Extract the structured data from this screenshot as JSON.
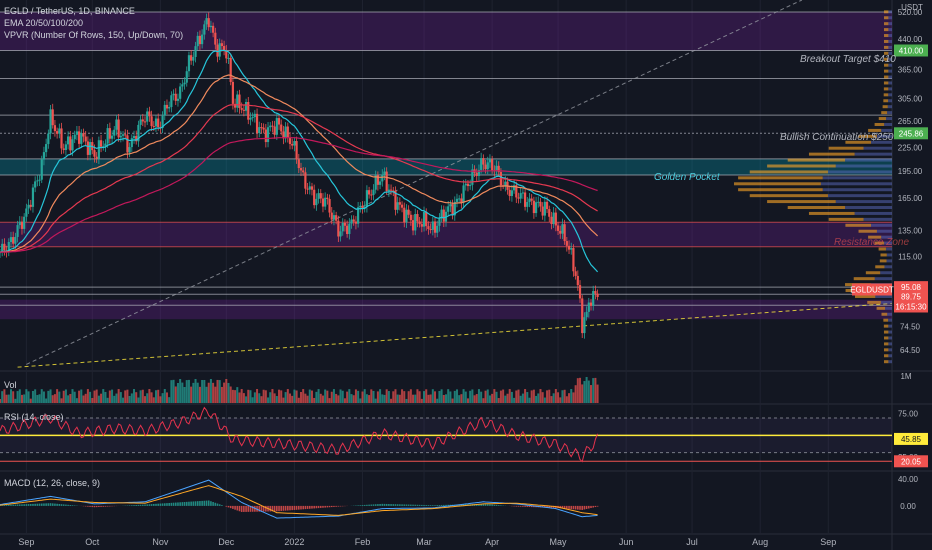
{
  "header": {
    "symbol_line": "EGLD / TetherUS, 1D, BINANCE",
    "ema_line": "EMA 20/50/100/200",
    "vpvr_line": "VPVR (Number Of Rows, 150, Up/Down, 70)"
  },
  "annotations": {
    "breakout": "Breakout Target $410",
    "bullish": "Bullish Continuation $250",
    "golden": "Golden Pocket",
    "resistance": "Resistance Zone"
  },
  "colors": {
    "background": "#131722",
    "up": "#26a69a",
    "down": "#ef5350",
    "ema20": "#26c6da",
    "ema50": "#f08a5d",
    "ema100": "#e53950",
    "ema200": "#c2185b",
    "rsi": "#e5334d",
    "macd": "#4aa3ff",
    "signal": "#ffa726"
  },
  "chart_data": [
    {
      "type": "candlestick",
      "title": "EGLD / TetherUS, 1D, BINANCE",
      "currency": "USDT",
      "y_scale": "log",
      "ylim": [
        57,
        560
      ],
      "y_ticks": [
        "520.00",
        "440.00",
        "365.00",
        "305.00",
        "265.00",
        "225.00",
        "195.00",
        "165.00",
        "135.00",
        "115.00",
        "74.50",
        "64.50"
      ],
      "x_ticks": [
        "Sep",
        "Oct",
        "Nov",
        "Dec",
        "2022",
        "Feb",
        "Mar",
        "Apr",
        "May",
        "Jun",
        "Jul",
        "Aug",
        "Sep"
      ],
      "close_path": [
        [
          "2021-08-20",
          118
        ],
        [
          "2021-08-25",
          125
        ],
        [
          "2021-09-01",
          150
        ],
        [
          "2021-09-08",
          200
        ],
        [
          "2021-09-12",
          270
        ],
        [
          "2021-09-18",
          225
        ],
        [
          "2021-09-25",
          245
        ],
        [
          "2021-10-02",
          215
        ],
        [
          "2021-10-08",
          240
        ],
        [
          "2021-10-12",
          255
        ],
        [
          "2021-10-18",
          225
        ],
        [
          "2021-10-25",
          275
        ],
        [
          "2021-10-31",
          255
        ],
        [
          "2021-11-05",
          300
        ],
        [
          "2021-11-10",
          315
        ],
        [
          "2021-11-14",
          380
        ],
        [
          "2021-11-18",
          430
        ],
        [
          "2021-11-23",
          500
        ],
        [
          "2021-11-26",
          420
        ],
        [
          "2021-12-01",
          410
        ],
        [
          "2021-12-04",
          300
        ],
        [
          "2021-12-08",
          290
        ],
        [
          "2021-12-13",
          270
        ],
        [
          "2021-12-18",
          245
        ],
        [
          "2021-12-24",
          260
        ],
        [
          "2021-12-31",
          232
        ],
        [
          "2022-01-05",
          185
        ],
        [
          "2022-01-10",
          165
        ],
        [
          "2022-01-15",
          163
        ],
        [
          "2022-01-21",
          135
        ],
        [
          "2022-01-27",
          140
        ],
        [
          "2022-02-03",
          165
        ],
        [
          "2022-02-07",
          180
        ],
        [
          "2022-02-10",
          190
        ],
        [
          "2022-02-14",
          170
        ],
        [
          "2022-02-18",
          155
        ],
        [
          "2022-02-24",
          142
        ],
        [
          "2022-03-01",
          143
        ],
        [
          "2022-03-05",
          135
        ],
        [
          "2022-03-10",
          150
        ],
        [
          "2022-03-16",
          160
        ],
        [
          "2022-03-22",
          185
        ],
        [
          "2022-03-28",
          205
        ],
        [
          "2022-04-02",
          200
        ],
        [
          "2022-04-07",
          175
        ],
        [
          "2022-04-12",
          170
        ],
        [
          "2022-04-18",
          160
        ],
        [
          "2022-04-25",
          155
        ],
        [
          "2022-04-30",
          140
        ],
        [
          "2022-05-04",
          130
        ],
        [
          "2022-05-08",
          110
        ],
        [
          "2022-05-10",
          95
        ],
        [
          "2022-05-12",
          76
        ],
        [
          "2022-05-14",
          80
        ],
        [
          "2022-05-16",
          90
        ],
        [
          "2022-05-19",
          89.75
        ]
      ],
      "last_price": "89.75",
      "last_label": "EGLDUSDT",
      "countdown": "16:15:30",
      "price_labels": [
        {
          "text": "410.00",
          "value": 410,
          "color": "#4caf50"
        },
        {
          "text": "245.86",
          "value": 245.86,
          "color": "#4caf50"
        },
        {
          "text": "95.08",
          "value": 95.08,
          "color": "#ef5350"
        }
      ],
      "horizontal_lines": [
        520,
        410,
        345,
        275,
        245.86,
        210,
        190,
        142,
        122,
        95.08,
        91,
        85
      ],
      "zones": [
        {
          "name": "top zone",
          "from": 410,
          "to": 520,
          "color": "#7b1fa2"
        },
        {
          "name": "mid zone",
          "from": 122,
          "to": 142,
          "color": "#7b1fa2"
        },
        {
          "name": "low zone",
          "from": 78,
          "to": 88,
          "color": "#7b1fa2"
        },
        {
          "name": "golden pocket",
          "from": 190,
          "to": 210,
          "color": "#00acc1"
        }
      ],
      "trendlines": [
        {
          "style": "dashed",
          "color": "#9598a1",
          "from": [
            "2021-09-01",
            59
          ],
          "to": [
            "2022-08-20",
            560
          ]
        },
        {
          "style": "dashed",
          "color": "#ffeb3b",
          "from": [
            "2021-08-28",
            58
          ],
          "to": [
            "2022-09-30",
            86
          ]
        }
      ]
    },
    {
      "type": "bar",
      "title": "Vol",
      "scale_label": "1M"
    },
    {
      "type": "line",
      "title": "RSI (14, close)",
      "ylim": [
        10,
        85
      ],
      "y_ticks": [
        "75.00",
        "25.00"
      ],
      "value": "45.85",
      "lower_label": "20.05",
      "levels": [
        70,
        50,
        30
      ],
      "path": [
        [
          "2021-08-20",
          55
        ],
        [
          "2021-09-12",
          70
        ],
        [
          "2021-09-25",
          52
        ],
        [
          "2021-10-12",
          58
        ],
        [
          "2021-10-25",
          55
        ],
        [
          "2021-11-10",
          65
        ],
        [
          "2021-11-23",
          78
        ],
        [
          "2021-12-04",
          45
        ],
        [
          "2021-12-18",
          42
        ],
        [
          "2022-01-05",
          38
        ],
        [
          "2022-01-21",
          33
        ],
        [
          "2022-02-10",
          52
        ],
        [
          "2022-03-05",
          40
        ],
        [
          "2022-03-28",
          66
        ],
        [
          "2022-04-12",
          50
        ],
        [
          "2022-04-30",
          40
        ],
        [
          "2022-05-12",
          25
        ],
        [
          "2022-05-19",
          45.85
        ]
      ]
    },
    {
      "type": "line",
      "title": "MACD (12, 26, close, 9)",
      "ylim": [
        -40,
        50
      ],
      "y_ticks": [
        "40.00",
        "0.00"
      ],
      "macd": [
        [
          "2021-08-20",
          2
        ],
        [
          "2021-09-12",
          14
        ],
        [
          "2021-10-02",
          3
        ],
        [
          "2021-10-25",
          6
        ],
        [
          "2021-11-23",
          38
        ],
        [
          "2021-12-08",
          5
        ],
        [
          "2021-12-24",
          -18
        ],
        [
          "2022-01-21",
          -15
        ],
        [
          "2022-02-10",
          -4
        ],
        [
          "2022-03-05",
          -3
        ],
        [
          "2022-03-28",
          6
        ],
        [
          "2022-04-12",
          3
        ],
        [
          "2022-04-30",
          -4
        ],
        [
          "2022-05-12",
          -16
        ],
        [
          "2022-05-19",
          -14
        ]
      ],
      "signal": [
        [
          "2021-08-20",
          1
        ],
        [
          "2021-09-12",
          10
        ],
        [
          "2021-10-02",
          5
        ],
        [
          "2021-10-25",
          4
        ],
        [
          "2021-11-23",
          30
        ],
        [
          "2021-12-08",
          14
        ],
        [
          "2021-12-24",
          -10
        ],
        [
          "2022-01-21",
          -14
        ],
        [
          "2022-02-10",
          -7
        ],
        [
          "2022-03-05",
          -4
        ],
        [
          "2022-03-28",
          3
        ],
        [
          "2022-04-12",
          4
        ],
        [
          "2022-04-30",
          -1
        ],
        [
          "2022-05-12",
          -10
        ],
        [
          "2022-05-19",
          -13
        ]
      ]
    }
  ]
}
